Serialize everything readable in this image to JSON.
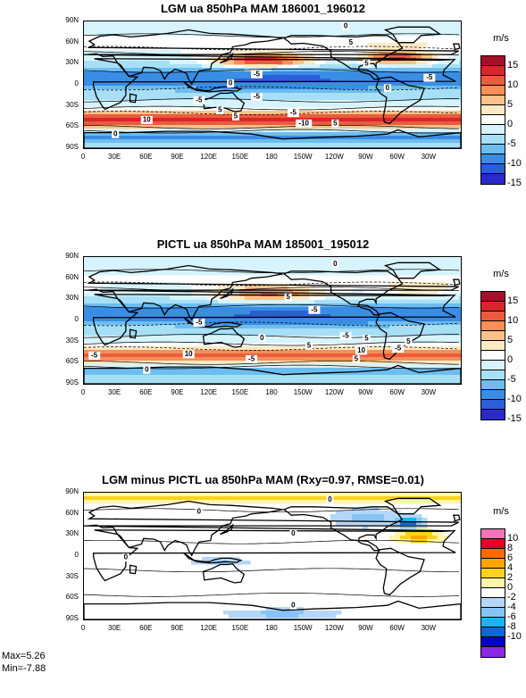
{
  "panels": [
    {
      "title": "LGM ua 850hPa MAM 186001_196012",
      "colorbar_unit": "m/s",
      "colorbar_labels": [
        "15",
        "10",
        "5",
        "0",
        "-5",
        "-10",
        "-15"
      ],
      "colorbar_colors": [
        "#a50f28",
        "#d8262c",
        "#ec5b3e",
        "#f88f56",
        "#fcc289",
        "#fde9c4",
        "#ffffff",
        "#d7f3fb",
        "#a7dff6",
        "#6dbdf0",
        "#3a8de5",
        "#2b5ed8",
        "#2929cc"
      ],
      "contour_labels": [
        "0",
        "5",
        "-5",
        "5",
        "0",
        "0",
        "-5",
        "-5",
        "5",
        "-5",
        "5",
        "-10",
        "10",
        "0",
        "5",
        "-5"
      ]
    },
    {
      "title": "PICTL ua 850hPa MAM 185001_195012",
      "colorbar_unit": "m/s",
      "colorbar_labels": [
        "15",
        "10",
        "5",
        "0",
        "-5",
        "-10",
        "-15"
      ],
      "colorbar_colors": [
        "#a50f28",
        "#d8262c",
        "#ec5b3e",
        "#f88f56",
        "#fcc289",
        "#fde9c4",
        "#ffffff",
        "#d7f3fb",
        "#a7dff6",
        "#6dbdf0",
        "#3a8de5",
        "#2b5ed8",
        "#2929cc"
      ],
      "contour_labels": [
        "0",
        "-5",
        "5",
        "-5",
        "5",
        "0",
        "-5",
        "5",
        "10",
        "5",
        "10",
        "-5",
        "-5",
        "0",
        "5",
        "-5"
      ]
    },
    {
      "title": "LGM minus PICTL ua 850hPa MAM (Rxy=0.97, RMSE=0.01)",
      "colorbar_unit": "m/s",
      "colorbar_labels": [
        "10",
        "8",
        "6",
        "4",
        "2",
        "0",
        "-2",
        "-4",
        "-6",
        "-8",
        "-10"
      ],
      "colorbar_colors": [
        "#f472b6",
        "#e8001f",
        "#ff6a00",
        "#ffa500",
        "#ffd21e",
        "#fff6aa",
        "#ffffff",
        "#b5d6f9",
        "#86c4f7",
        "#18b6f0",
        "#0b67d9",
        "#0000c8",
        "#8a2be2"
      ],
      "contour_labels": [
        "0",
        "0",
        "0",
        "0",
        "0"
      ]
    }
  ],
  "lat_labels": [
    "90N",
    "60N",
    "30N",
    "0",
    "30S",
    "60S",
    "90S"
  ],
  "lon_labels": [
    "0",
    "30E",
    "60E",
    "90E",
    "120E",
    "150E",
    "180",
    "150W",
    "120W",
    "90W",
    "60W",
    "30W"
  ],
  "stats": {
    "max": "Max=5.26",
    "min": "Min=-7.88"
  },
  "chart_data": [
    {
      "type": "heatmap",
      "title": "LGM ua 850hPa MAM 186001_196012",
      "field": "zonal wind (ua) at 850hPa, MAM",
      "units": "m/s",
      "x_range": [
        0,
        360
      ],
      "y_range": [
        -90,
        90
      ],
      "levels": [
        -15,
        -10,
        -5,
        0,
        5,
        10,
        15
      ],
      "features": {
        "north_pacific_jet_max": 15,
        "north_atlantic_jet_max": 15,
        "tropical_easterly_min": -10,
        "southern_westerly_max": 15
      }
    },
    {
      "type": "heatmap",
      "title": "PICTL ua 850hPa MAM 185001_195012",
      "field": "zonal wind (ua) at 850hPa, MAM",
      "units": "m/s",
      "x_range": [
        0,
        360
      ],
      "y_range": [
        -90,
        90
      ],
      "levels": [
        -15,
        -10,
        -5,
        0,
        5,
        10,
        15
      ],
      "features": {
        "north_pacific_jet_max": 12,
        "tropical_easterly_min": -10,
        "southern_westerly_max": 15
      }
    },
    {
      "type": "heatmap",
      "title": "LGM minus PICTL ua 850hPa MAM (Rxy=0.97, RMSE=0.01)",
      "field": "difference of zonal wind at 850hPa",
      "units": "m/s",
      "x_range": [
        0,
        360
      ],
      "y_range": [
        -90,
        90
      ],
      "levels": [
        -10,
        -8,
        -6,
        -4,
        -2,
        0,
        2,
        4,
        6,
        8,
        10
      ],
      "max": 5.26,
      "min": -7.88
    }
  ]
}
